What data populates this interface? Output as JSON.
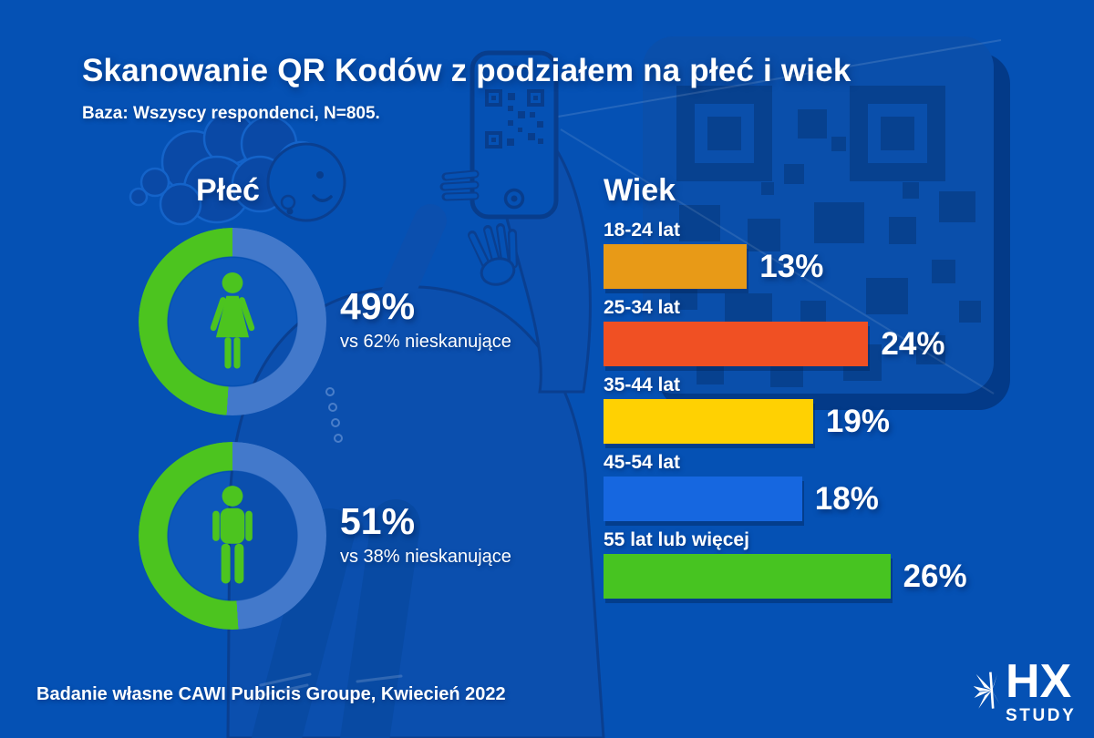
{
  "header": {
    "title": "Skanowanie QR Kodów z podziałem na płeć i wiek",
    "subtitle": "Baza: Wszyscy respondenci, N=805."
  },
  "chart_data": [
    {
      "type": "donut",
      "title": "Płeć",
      "unit": "%",
      "items": [
        {
          "icon": "female-icon",
          "value": 49,
          "label": "49%",
          "note": "vs 62% nieskanujące"
        },
        {
          "icon": "male-icon",
          "value": 51,
          "label": "51%",
          "note": "vs 38% nieskanujące"
        }
      ],
      "colors": {
        "scan": "#4cc41f",
        "rest": "#4379cb"
      }
    },
    {
      "type": "bar",
      "title": "Wiek",
      "orientation": "horizontal",
      "categories": [
        "18-24 lat",
        "25-34 lat",
        "35-44 lat",
        "45-54 lat",
        "55 lat lub więcej"
      ],
      "values": [
        13,
        24,
        19,
        18,
        26
      ],
      "value_labels": [
        "13%",
        "24%",
        "19%",
        "18%",
        "26%"
      ],
      "bar_colors": [
        "#e89a17",
        "#f05023",
        "#ffd102",
        "#1667e0",
        "#47c421"
      ],
      "xlim": [
        0,
        30
      ],
      "grid": false,
      "legend": "none"
    }
  ],
  "footer": {
    "source": "Badanie własne CAWI Publicis Groupe, Kwiecień 2022"
  },
  "logo": {
    "icon": "starburst-icon",
    "name": "HX",
    "sub": "STUDY"
  },
  "colors": {
    "background": "#0551b4",
    "text": "#ffffff",
    "qr_panel": "#0a4fab",
    "qr_squares": "#07418f",
    "illustration": "#0b4fae",
    "illustration_outline": "#0a3f90"
  }
}
